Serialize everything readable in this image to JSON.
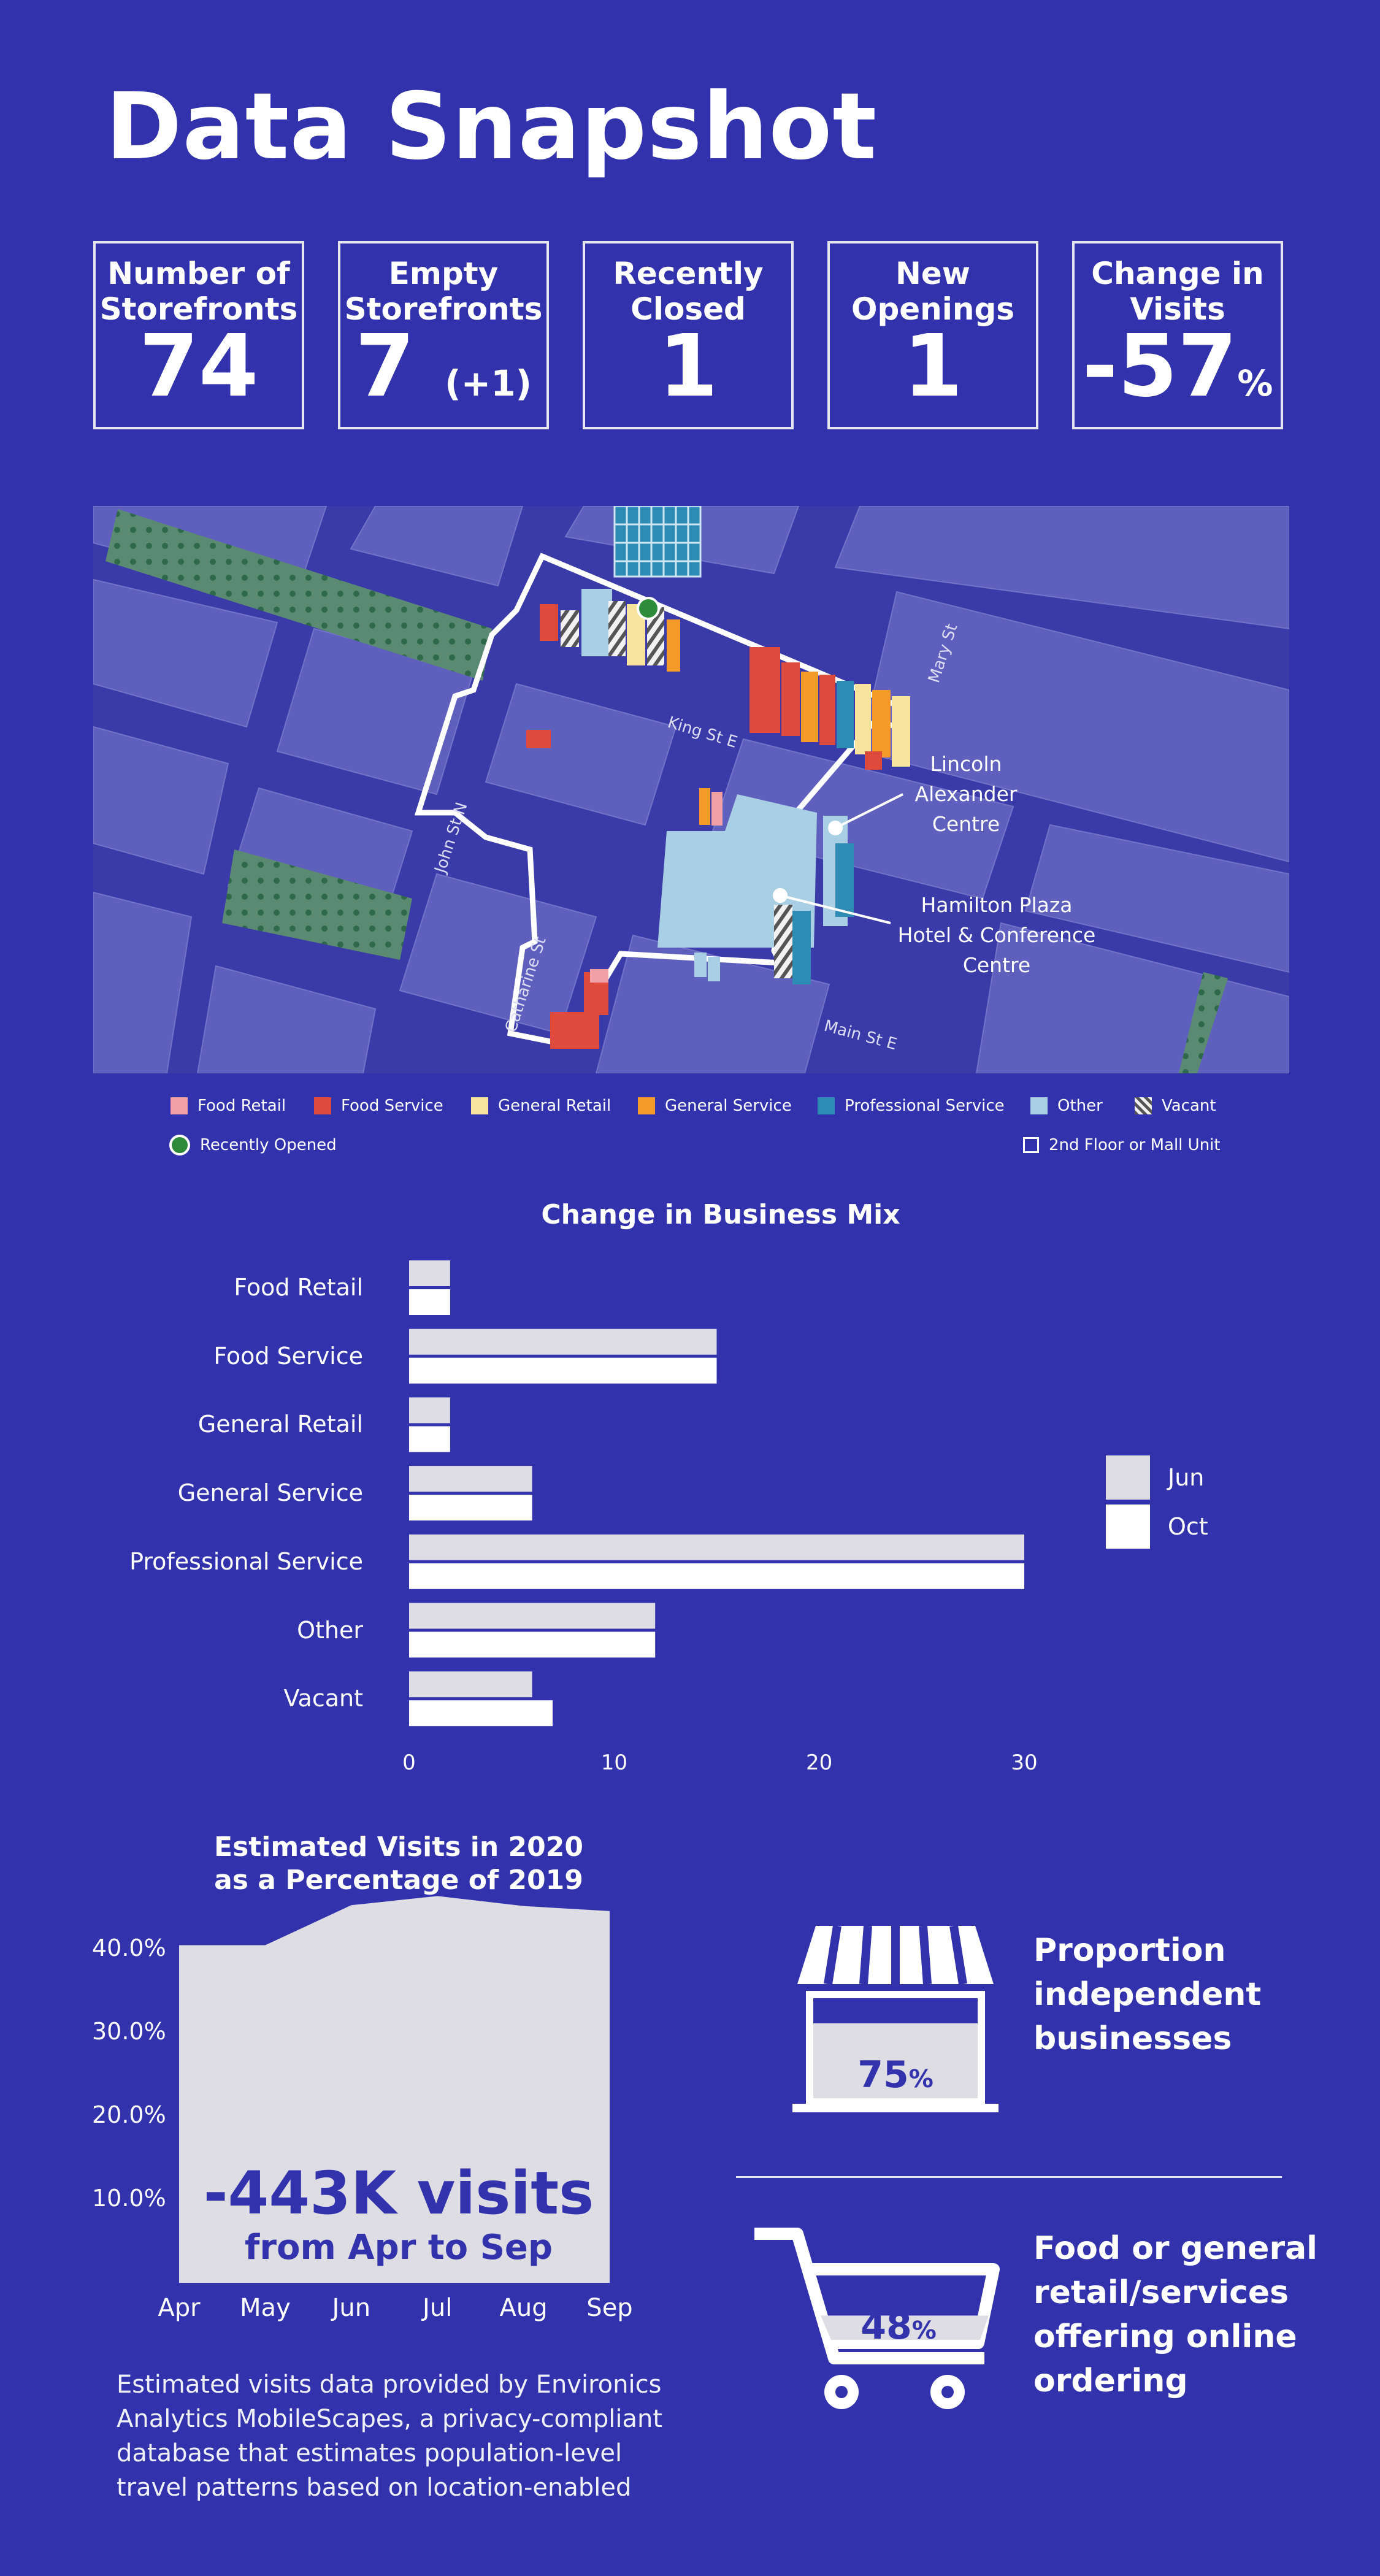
{
  "title": "Data Snapshot",
  "stats": [
    {
      "label": "Number of Storefronts",
      "value": "74",
      "sub": ""
    },
    {
      "label": "Empty Storefronts",
      "value": "7",
      "sub": "(+1)"
    },
    {
      "label": "Recently Closed",
      "value": "1",
      "sub": ""
    },
    {
      "label": "New Openings",
      "value": "1",
      "sub": ""
    },
    {
      "label": "Change in Visits",
      "value": "-57",
      "sub": "%"
    }
  ],
  "map": {
    "streets": [
      "King St E",
      "Main St E",
      "John St N",
      "Mary St",
      "Catharine St"
    ],
    "places": [
      [
        "Lincoln",
        "Alexander",
        "Centre"
      ],
      [
        "Hamilton Plaza",
        "Hotel & Conference",
        "Centre"
      ]
    ]
  },
  "legend": {
    "items": [
      {
        "label": "Food Retail",
        "color": "#f2a0a6"
      },
      {
        "label": "Food Service",
        "color": "#de4b3d"
      },
      {
        "label": "General Retail",
        "color": "#f7e39b"
      },
      {
        "label": "General Service",
        "color": "#f39a2a"
      },
      {
        "label": "Professional Service",
        "color": "#2e8cb4"
      },
      {
        "label": "Other",
        "color": "#a8cfe3"
      },
      {
        "label": "Vacant",
        "color": "hatched"
      }
    ],
    "recently_opened": "Recently Opened",
    "second_floor": "2nd Floor or Mall Unit"
  },
  "chart_data": [
    {
      "type": "bar",
      "title": "Change in Business Mix",
      "categories": [
        "Food Retail",
        "Food Service",
        "General Retail",
        "General Service",
        "Professional Service",
        "Other",
        "Vacant"
      ],
      "series": [
        {
          "name": "Jun",
          "values": [
            2,
            15,
            2,
            6,
            30,
            12,
            6
          ],
          "color": "#dedde3"
        },
        {
          "name": "Oct",
          "values": [
            2,
            15,
            2,
            6,
            30,
            12,
            7
          ],
          "color": "#ffffff"
        }
      ],
      "xlim": [
        0,
        30
      ],
      "xticks": [
        "0",
        "10",
        "20",
        "30"
      ],
      "orientation": "horizontal"
    },
    {
      "type": "area",
      "title": "Estimated Visits in 2020 as a Percentage of 2019",
      "title_lines": [
        "Estimated Visits in 2020",
        "as a Percentage of 2019"
      ],
      "categories": [
        "Apr",
        "May",
        "Jun",
        "Jul",
        "Aug",
        "Sep"
      ],
      "values": [
        40.5,
        40.5,
        45.3,
        46.4,
        45.2,
        44.6
      ],
      "ylim": [
        0,
        46.5
      ],
      "yticks": [
        "10.0%",
        "20.0%",
        "30.0%",
        "40.0%"
      ],
      "annotation": "-443K visits",
      "annotation_sub": "from Apr to Sep"
    }
  ],
  "independent": {
    "label_lines": [
      "Proportion",
      "independent",
      "businesses"
    ],
    "value": "75",
    "unit": "%",
    "fraction": 0.75
  },
  "online": {
    "label_lines": [
      "Food or general",
      "retail/services",
      "offering online",
      "ordering"
    ],
    "value": "48",
    "unit": "%",
    "fraction": 0.48
  },
  "footnote": "Estimated visits data provided by Environics Analytics MobileScapes, a privacy-compliant database that estimates population-level travel patterns based on location-enabled"
}
